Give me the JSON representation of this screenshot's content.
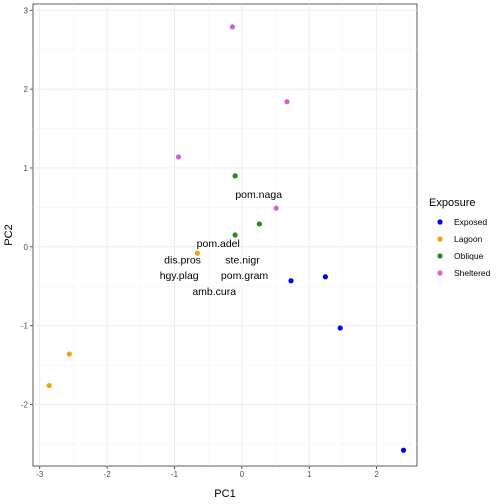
{
  "chart_data": {
    "type": "scatter",
    "xlabel": "PC1",
    "ylabel": "PC2",
    "xlim": [
      -3.1,
      2.6
    ],
    "ylim": [
      -2.78,
      3.08
    ],
    "x_ticks": [
      -3,
      -2,
      -1,
      0,
      1,
      2
    ],
    "y_ticks": [
      -2,
      -1,
      0,
      1,
      2,
      3
    ],
    "grid": true,
    "legend": {
      "title": "Exposure",
      "placement": "right"
    },
    "series": [
      {
        "name": "Exposed",
        "color": "#0000ee",
        "points": [
          {
            "x": 0.73,
            "y": -0.43
          },
          {
            "x": 1.24,
            "y": -0.38
          },
          {
            "x": 1.46,
            "y": -1.03
          },
          {
            "x": 2.4,
            "y": -2.58
          }
        ]
      },
      {
        "name": "Lagoon",
        "color": "#f2a20c",
        "points": [
          {
            "x": -2.56,
            "y": -1.36
          },
          {
            "x": -2.86,
            "y": -1.76
          },
          {
            "x": -0.66,
            "y": -0.08
          }
        ]
      },
      {
        "name": "Oblique",
        "color": "#228b22",
        "points": [
          {
            "x": -0.1,
            "y": 0.9
          },
          {
            "x": 0.26,
            "y": 0.29
          },
          {
            "x": -0.1,
            "y": 0.15
          }
        ]
      },
      {
        "name": "Sheltered",
        "color": "#d85fcc",
        "points": [
          {
            "x": -0.14,
            "y": 2.79
          },
          {
            "x": 0.67,
            "y": 1.84
          },
          {
            "x": -0.94,
            "y": 1.14
          },
          {
            "x": 0.51,
            "y": 0.49
          }
        ]
      }
    ],
    "annotations": [
      {
        "text": "pom.naga",
        "x": 0.25,
        "y": 0.67
      },
      {
        "text": "pom.adel",
        "x": -0.35,
        "y": 0.05
      },
      {
        "text": "dis.pros",
        "x": -0.88,
        "y": -0.16
      },
      {
        "text": "ste.nigr",
        "x": 0.01,
        "y": -0.16
      },
      {
        "text": "hgy.plag",
        "x": -0.93,
        "y": -0.36
      },
      {
        "text": "pom.gram",
        "x": 0.04,
        "y": -0.36
      },
      {
        "text": "amb.cura",
        "x": -0.41,
        "y": -0.56
      }
    ]
  }
}
